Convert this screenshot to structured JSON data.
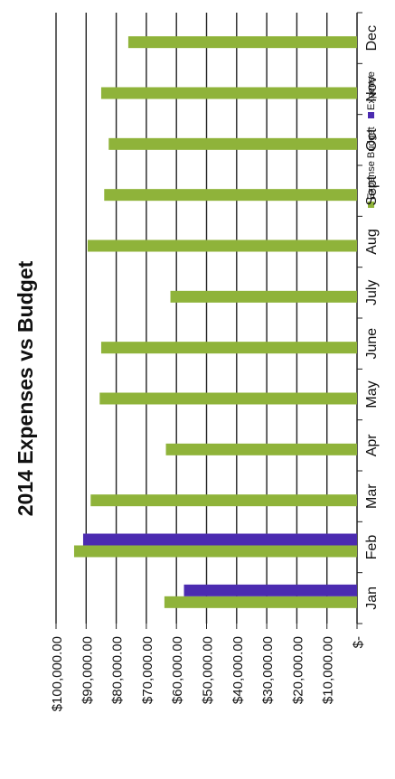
{
  "chart_data": {
    "type": "bar",
    "orientation": "horizontal-rotated",
    "title": "2014 Expenses vs Budget",
    "categories": [
      "Jan",
      "Feb",
      "Mar",
      "Apr",
      "May",
      "June",
      "July",
      "Aug",
      "Sept",
      "Oct",
      "Nov",
      "Dec"
    ],
    "series": [
      {
        "name": "Expense Budget",
        "color": "#8fb33a",
        "values": [
          64000,
          94000,
          88500,
          63500,
          85500,
          85000,
          62000,
          89500,
          84000,
          82500,
          85000,
          76000
        ]
      },
      {
        "name": "Expense",
        "color": "#4b2bb0",
        "values": [
          57500,
          91000,
          null,
          null,
          null,
          null,
          null,
          null,
          null,
          null,
          null,
          null
        ]
      }
    ],
    "y_ticks": [
      "$-",
      "$10,000.00",
      "$20,000.00",
      "$30,000.00",
      "$40,000.00",
      "$50,000.00",
      "$60,000.00",
      "$70,000.00",
      "$80,000.00",
      "$90,000.00",
      "$100,000.00"
    ],
    "ylim": [
      0,
      100000
    ],
    "grid": true,
    "legend_position": "top-right"
  }
}
